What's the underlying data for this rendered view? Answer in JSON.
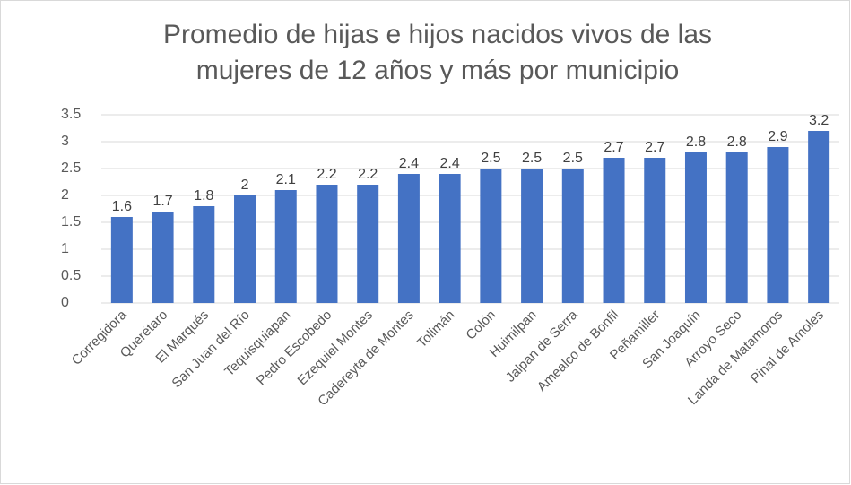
{
  "chart_data": {
    "type": "bar",
    "title": [
      "Promedio de hijas e hijos nacidos vivos de las",
      "mujeres de 12 años y más por municipio"
    ],
    "categories": [
      "Corregidora",
      "Querétaro",
      "El Marqués",
      "San Juan del Río",
      "Tequisquiapan",
      "Pedro Escobedo",
      "Ezequiel Montes",
      "Cadereyta de Montes",
      "Tolimán",
      "Colón",
      "Huimilpan",
      "Jalpan de Serra",
      "Amealco de Bonfil",
      "Peñamiller",
      "San Joaquín",
      "Arroyo Seco",
      "Landa de Matamoros",
      "Pinal de Amoles"
    ],
    "values": [
      1.6,
      1.7,
      1.8,
      2,
      2.1,
      2.2,
      2.2,
      2.4,
      2.4,
      2.5,
      2.5,
      2.5,
      2.7,
      2.7,
      2.8,
      2.8,
      2.9,
      3.2
    ],
    "color": "#4472c4",
    "ylim": [
      0,
      3.5
    ],
    "yticks": [
      0,
      0.5,
      1,
      1.5,
      2,
      2.5,
      3,
      3.5
    ],
    "grid": true
  }
}
